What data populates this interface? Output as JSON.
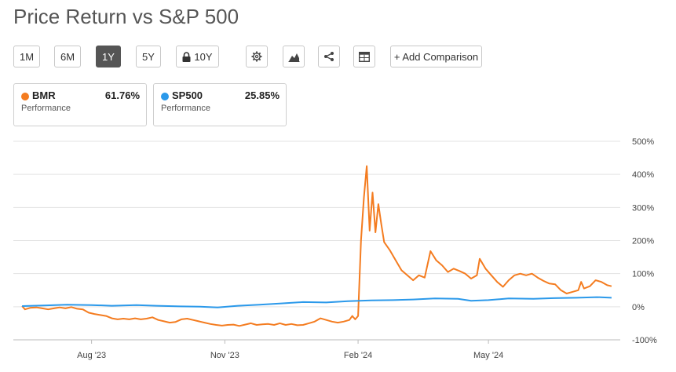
{
  "title": "Price Return vs S&P 500",
  "toolbar": {
    "ranges": [
      "1M",
      "6M",
      "1Y",
      "5Y",
      "10Y"
    ],
    "active_range": "1Y",
    "locked_range": "10Y",
    "icons": [
      "gear-icon",
      "mountain-chart-icon",
      "share-icon",
      "table-icon"
    ],
    "add_comparison": "+ Add Comparison"
  },
  "legend": [
    {
      "symbol": "BMR",
      "value": "61.76%",
      "label": "Performance",
      "color": "#f47c20"
    },
    {
      "symbol": "SP500",
      "value": "25.85%",
      "label": "Performance",
      "color": "#2b99ea"
    }
  ],
  "chart_data": {
    "type": "line",
    "y_axis": {
      "min": -100,
      "max": 500,
      "ticks": [
        500,
        400,
        300,
        200,
        100,
        0,
        -100
      ],
      "tick_labels": [
        "500%",
        "400%",
        "300%",
        "200%",
        "100%",
        "0%",
        "-100%"
      ],
      "position": "right"
    },
    "x_axis": {
      "ticks": [
        "2023-08-01",
        "2023-11-01",
        "2024-02-01",
        "2024-05-01"
      ],
      "tick_labels": [
        "Aug '23",
        "Nov '23",
        "Feb '24",
        "May '24"
      ]
    },
    "grid": true,
    "series": [
      {
        "name": "BMR",
        "color": "#f47c20",
        "points": [
          [
            "2023-06-14",
            2
          ],
          [
            "2023-06-16",
            -8
          ],
          [
            "2023-06-20",
            -3
          ],
          [
            "2023-06-24",
            -2
          ],
          [
            "2023-06-28",
            -5
          ],
          [
            "2023-07-02",
            -8
          ],
          [
            "2023-07-06",
            -5
          ],
          [
            "2023-07-10",
            -2
          ],
          [
            "2023-07-14",
            -5
          ],
          [
            "2023-07-18",
            -1
          ],
          [
            "2023-07-22",
            -6
          ],
          [
            "2023-07-26",
            -8
          ],
          [
            "2023-07-30",
            -18
          ],
          [
            "2023-08-03",
            -22
          ],
          [
            "2023-08-07",
            -25
          ],
          [
            "2023-08-11",
            -28
          ],
          [
            "2023-08-15",
            -35
          ],
          [
            "2023-08-19",
            -38
          ],
          [
            "2023-08-23",
            -36
          ],
          [
            "2023-08-27",
            -38
          ],
          [
            "2023-08-31",
            -35
          ],
          [
            "2023-09-04",
            -38
          ],
          [
            "2023-09-08",
            -36
          ],
          [
            "2023-09-12",
            -32
          ],
          [
            "2023-09-16",
            -40
          ],
          [
            "2023-09-20",
            -44
          ],
          [
            "2023-09-24",
            -48
          ],
          [
            "2023-09-28",
            -46
          ],
          [
            "2023-10-02",
            -38
          ],
          [
            "2023-10-06",
            -36
          ],
          [
            "2023-10-10",
            -40
          ],
          [
            "2023-10-14",
            -44
          ],
          [
            "2023-10-18",
            -48
          ],
          [
            "2023-10-22",
            -52
          ],
          [
            "2023-10-26",
            -55
          ],
          [
            "2023-10-30",
            -57
          ],
          [
            "2023-11-03",
            -55
          ],
          [
            "2023-11-07",
            -54
          ],
          [
            "2023-11-11",
            -58
          ],
          [
            "2023-11-15",
            -54
          ],
          [
            "2023-11-19",
            -50
          ],
          [
            "2023-11-23",
            -55
          ],
          [
            "2023-11-27",
            -53
          ],
          [
            "2023-12-01",
            -52
          ],
          [
            "2023-12-05",
            -55
          ],
          [
            "2023-12-09",
            -50
          ],
          [
            "2023-12-13",
            -55
          ],
          [
            "2023-12-17",
            -52
          ],
          [
            "2023-12-21",
            -56
          ],
          [
            "2023-12-25",
            -55
          ],
          [
            "2023-12-29",
            -50
          ],
          [
            "2024-01-02",
            -45
          ],
          [
            "2024-01-06",
            -35
          ],
          [
            "2024-01-10",
            -40
          ],
          [
            "2024-01-14",
            -45
          ],
          [
            "2024-01-18",
            -48
          ],
          [
            "2024-01-22",
            -45
          ],
          [
            "2024-01-26",
            -40
          ],
          [
            "2024-01-28",
            -28
          ],
          [
            "2024-01-30",
            -38
          ],
          [
            "2024-02-01",
            -28
          ],
          [
            "2024-02-03",
            200
          ],
          [
            "2024-02-05",
            330
          ],
          [
            "2024-02-07",
            425
          ],
          [
            "2024-02-09",
            230
          ],
          [
            "2024-02-11",
            345
          ],
          [
            "2024-02-13",
            225
          ],
          [
            "2024-02-15",
            310
          ],
          [
            "2024-02-17",
            250
          ],
          [
            "2024-02-19",
            195
          ],
          [
            "2024-02-23",
            170
          ],
          [
            "2024-02-27",
            140
          ],
          [
            "2024-03-02",
            110
          ],
          [
            "2024-03-06",
            95
          ],
          [
            "2024-03-10",
            80
          ],
          [
            "2024-03-14",
            95
          ],
          [
            "2024-03-18",
            88
          ],
          [
            "2024-03-22",
            168
          ],
          [
            "2024-03-26",
            140
          ],
          [
            "2024-03-30",
            125
          ],
          [
            "2024-04-03",
            105
          ],
          [
            "2024-04-07",
            115
          ],
          [
            "2024-04-11",
            108
          ],
          [
            "2024-04-15",
            100
          ],
          [
            "2024-04-19",
            85
          ],
          [
            "2024-04-23",
            95
          ],
          [
            "2024-04-25",
            145
          ],
          [
            "2024-04-29",
            115
          ],
          [
            "2024-05-03",
            95
          ],
          [
            "2024-05-07",
            75
          ],
          [
            "2024-05-11",
            60
          ],
          [
            "2024-05-15",
            80
          ],
          [
            "2024-05-19",
            95
          ],
          [
            "2024-05-23",
            100
          ],
          [
            "2024-05-27",
            95
          ],
          [
            "2024-05-31",
            100
          ],
          [
            "2024-06-04",
            88
          ],
          [
            "2024-06-08",
            78
          ],
          [
            "2024-06-12",
            70
          ],
          [
            "2024-06-16",
            68
          ],
          [
            "2024-06-20",
            50
          ],
          [
            "2024-06-24",
            40
          ],
          [
            "2024-06-28",
            45
          ],
          [
            "2024-07-02",
            50
          ],
          [
            "2024-07-04",
            75
          ],
          [
            "2024-07-06",
            55
          ],
          [
            "2024-07-10",
            62
          ],
          [
            "2024-07-14",
            80
          ],
          [
            "2024-07-18",
            75
          ],
          [
            "2024-07-22",
            65
          ],
          [
            "2024-07-25",
            62
          ]
        ]
      },
      {
        "name": "SP500",
        "color": "#2b99ea",
        "points": [
          [
            "2023-06-14",
            2
          ],
          [
            "2023-07-01",
            4
          ],
          [
            "2023-07-15",
            6
          ],
          [
            "2023-08-01",
            5
          ],
          [
            "2023-08-15",
            3
          ],
          [
            "2023-09-01",
            5
          ],
          [
            "2023-09-15",
            3
          ],
          [
            "2023-10-01",
            1
          ],
          [
            "2023-10-15",
            0
          ],
          [
            "2023-10-27",
            -2
          ],
          [
            "2023-11-10",
            3
          ],
          [
            "2023-11-25",
            6
          ],
          [
            "2023-12-10",
            10
          ],
          [
            "2023-12-25",
            14
          ],
          [
            "2024-01-10",
            13
          ],
          [
            "2024-01-25",
            17
          ],
          [
            "2024-02-10",
            19
          ],
          [
            "2024-02-25",
            20
          ],
          [
            "2024-03-10",
            22
          ],
          [
            "2024-03-25",
            25
          ],
          [
            "2024-04-10",
            24
          ],
          [
            "2024-04-19",
            18
          ],
          [
            "2024-05-01",
            20
          ],
          [
            "2024-05-15",
            25
          ],
          [
            "2024-06-01",
            24
          ],
          [
            "2024-06-15",
            26
          ],
          [
            "2024-07-01",
            27
          ],
          [
            "2024-07-15",
            29
          ],
          [
            "2024-07-25",
            27
          ]
        ]
      }
    ]
  }
}
